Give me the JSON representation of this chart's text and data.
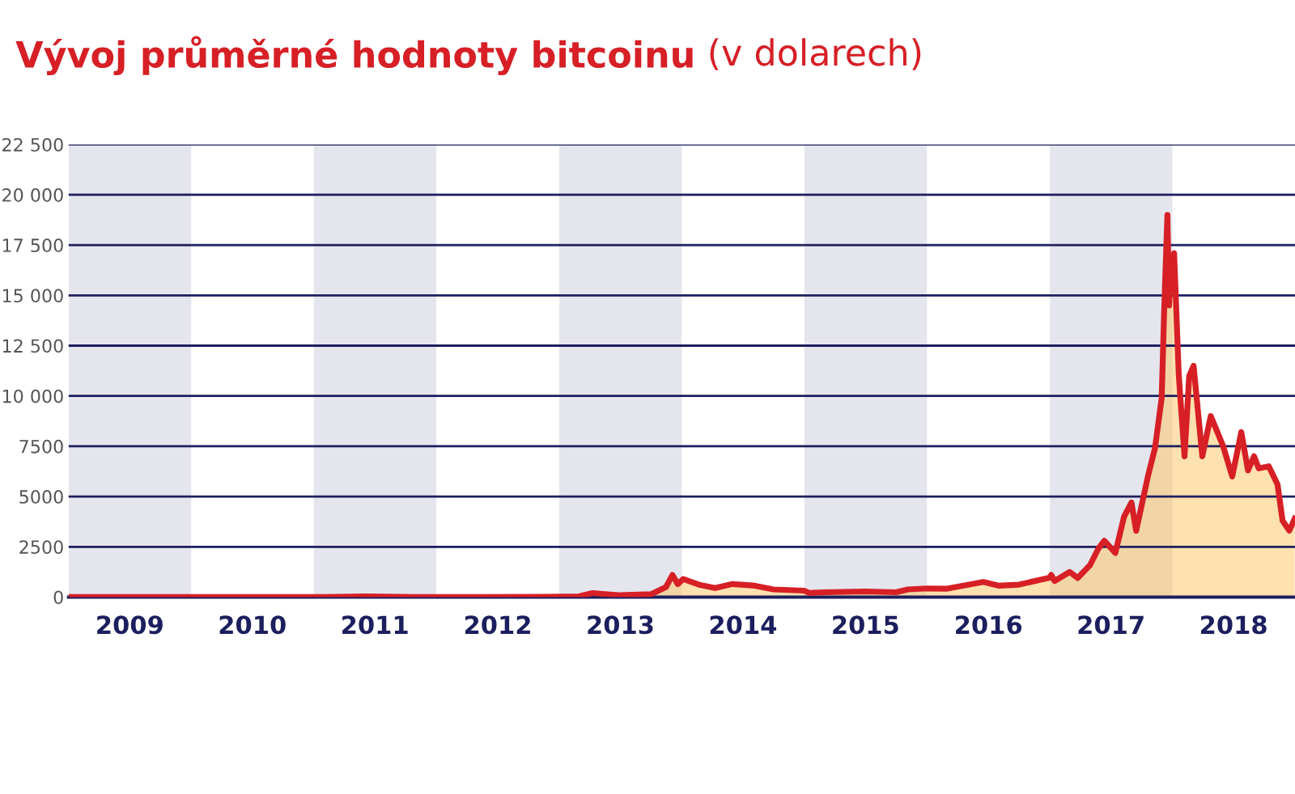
{
  "chart_data": {
    "type": "area",
    "title": "Vývoj průměrné hodnoty bitcoinu",
    "subtitle": "(v dolarech)",
    "x": [
      "2009-01-03",
      "2010-07-15",
      "2011-02-01",
      "2011-06-08",
      "2011-11-15",
      "2012-06-01",
      "2012-12-01",
      "2013-03-01",
      "2013-04-10",
      "2013-07-01",
      "2013-10-01",
      "2013-11-15",
      "2013-12-04",
      "2013-12-20",
      "2014-01-05",
      "2014-02-25",
      "2014-04-10",
      "2014-06-01",
      "2014-08-01",
      "2014-10-01",
      "2014-12-31",
      "2015-01-15",
      "2015-04-01",
      "2015-07-01",
      "2015-10-01",
      "2015-11-05",
      "2015-12-31",
      "2016-03-01",
      "2016-06-17",
      "2016-08-01",
      "2016-10-01",
      "2016-12-31",
      "2017-01-05",
      "2017-01-15",
      "2017-03-01",
      "2017-03-25",
      "2017-05-01",
      "2017-05-25",
      "2017-06-12",
      "2017-07-15",
      "2017-08-10",
      "2017-09-01",
      "2017-09-15",
      "2017-10-20",
      "2017-11-10",
      "2017-11-30",
      "2017-12-07",
      "2017-12-17",
      "2017-12-22",
      "2017-12-28",
      "2018-01-06",
      "2018-01-20",
      "2018-02-06",
      "2018-02-20",
      "2018-03-05",
      "2018-03-31",
      "2018-04-25",
      "2018-05-10",
      "2018-06-01",
      "2018-06-28",
      "2018-07-25",
      "2018-08-14",
      "2018-09-01",
      "2018-09-15",
      "2018-10-15",
      "2018-11-10",
      "2018-11-25",
      "2018-12-15",
      "2018-12-31"
    ],
    "values": [
      0,
      0,
      1,
      30,
      3,
      6,
      13,
      35,
      200,
      90,
      140,
      500,
      1100,
      650,
      900,
      600,
      450,
      650,
      580,
      380,
      320,
      210,
      250,
      280,
      240,
      380,
      430,
      420,
      750,
      570,
      620,
      960,
      1100,
      800,
      1250,
      950,
      1600,
      2400,
      2800,
      2200,
      4000,
      4700,
      3300,
      6000,
      7400,
      9900,
      14000,
      19000,
      14500,
      16500,
      17100,
      11000,
      7000,
      11000,
      11500,
      7000,
      9000,
      8400,
      7500,
      6000,
      8200,
      6300,
      7000,
      6400,
      6500,
      5600,
      3800,
      3300,
      3900
    ],
    "color": "#d71f26",
    "xlim": [
      "2009-01-01",
      "2019-01-01"
    ],
    "xticks": [
      {
        "value": "2009-07-02",
        "label": "2009"
      },
      {
        "value": "2010-07-02",
        "label": "2010"
      },
      {
        "value": "2011-07-02",
        "label": "2011"
      },
      {
        "value": "2012-07-02",
        "label": "2012"
      },
      {
        "value": "2013-07-02",
        "label": "2013"
      },
      {
        "value": "2014-07-02",
        "label": "2014"
      },
      {
        "value": "2015-07-02",
        "label": "2015"
      },
      {
        "value": "2016-07-02",
        "label": "2016"
      },
      {
        "value": "2017-07-02",
        "label": "2017"
      },
      {
        "value": "2018-07-02",
        "label": "2018"
      }
    ],
    "ylim": [
      0,
      22500
    ],
    "yticks": [
      0,
      {
        "value": 2500,
        "label": "2500"
      },
      {
        "value": 5000,
        "label": "5000"
      },
      {
        "value": 7500,
        "label": "7500"
      },
      {
        "value": 10000,
        "label": "10 000"
      },
      {
        "value": 12500,
        "label": "12 500"
      },
      {
        "value": 15000,
        "label": "15 000"
      },
      {
        "value": 17500,
        "label": "17 500"
      },
      {
        "value": 20000,
        "label": "20 000"
      },
      {
        "value": 22500,
        "label": "22 500"
      }
    ],
    "grid": "y",
    "bands": [
      {
        "axis": "x",
        "from": "2009-01-01",
        "to": "2010-01-01",
        "color": "#e5e5ed"
      },
      {
        "axis": "x",
        "from": "2011-01-01",
        "to": "2012-01-01",
        "color": "#e5e5ed"
      },
      {
        "axis": "x",
        "from": "2013-01-01",
        "to": "2014-01-01",
        "color": "#e5e5ed"
      },
      {
        "axis": "x",
        "from": "2015-01-01",
        "to": "2016-01-01",
        "color": "#e5e5ed"
      },
      {
        "axis": "x",
        "from": "2017-01-01",
        "to": "2018-01-01",
        "color": "#e5e5ed"
      }
    ]
  }
}
